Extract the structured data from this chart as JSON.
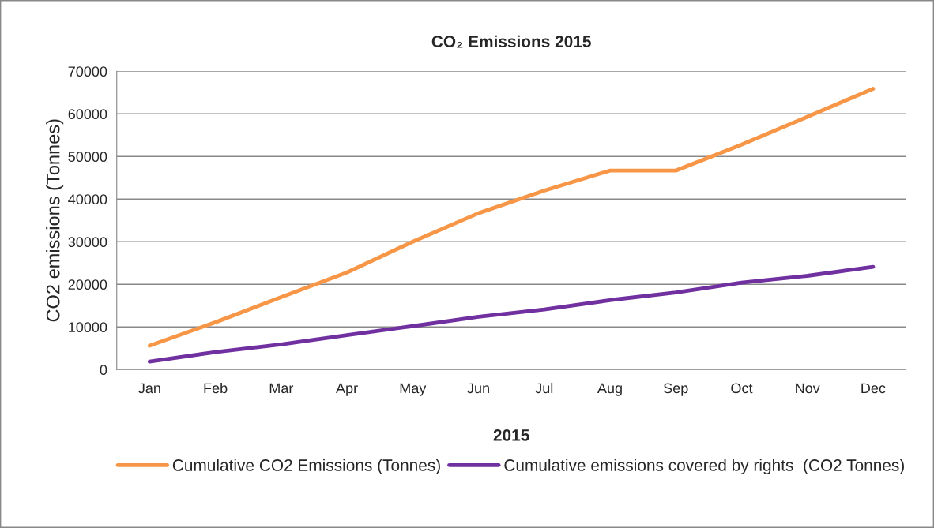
{
  "chart_data": {
    "type": "line",
    "title": "CO₂ Emissions 2015",
    "xlabel": "2015",
    "ylabel": "CO2 emissions (Tonnes)",
    "categories": [
      "Jan",
      "Feb",
      "Mar",
      "Apr",
      "May",
      "Jun",
      "Jul",
      "Aug",
      "Sep",
      "Oct",
      "Nov",
      "Dec"
    ],
    "series": [
      {
        "name": "Cumulative CO2 Emissions (Tonnes)",
        "color": "#f79646",
        "values": [
          5600,
          11100,
          17000,
          22800,
          30000,
          36700,
          42000,
          46700,
          46700,
          52800,
          59300,
          65900
        ]
      },
      {
        "name": "Cumulative emissions covered by rights  (CO2 Tonnes)",
        "color": "#7030a0",
        "values": [
          1900,
          4100,
          5900,
          8100,
          10200,
          12400,
          14100,
          16300,
          18100,
          20400,
          22000,
          24100
        ]
      }
    ],
    "ylim": [
      0,
      70000
    ],
    "yticks": [
      0,
      10000,
      20000,
      30000,
      40000,
      50000,
      60000,
      70000
    ],
    "grid": "y",
    "legend": "bottom",
    "marker": "none",
    "line_style": "solid"
  }
}
